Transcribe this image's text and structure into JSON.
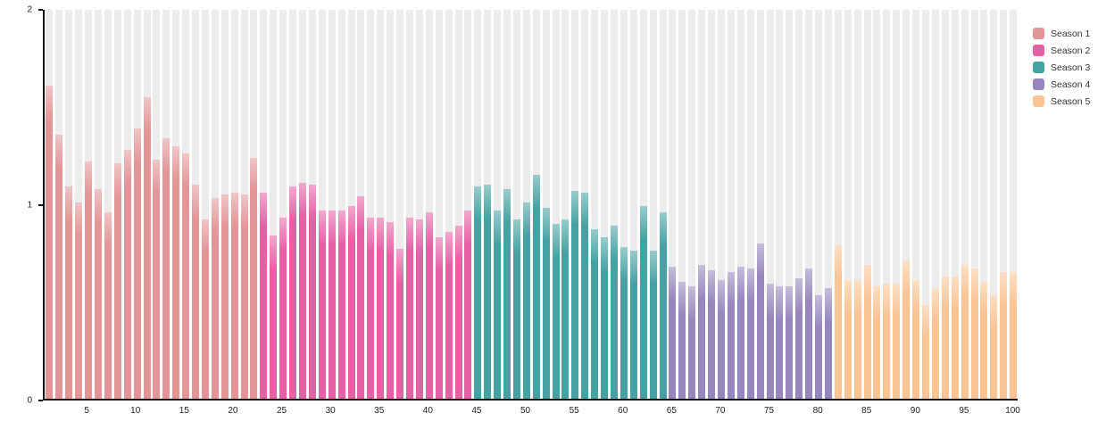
{
  "page": {
    "background": "#ffffff"
  },
  "chart_data": {
    "type": "bar",
    "title": "",
    "x_range": [
      1,
      100
    ],
    "ylim": [
      0,
      2
    ],
    "yticks": [
      "0",
      "1",
      "2"
    ],
    "xticks": [
      "5",
      "10",
      "15",
      "20",
      "25",
      "30",
      "35",
      "40",
      "45",
      "50",
      "55",
      "60",
      "65",
      "70",
      "75",
      "80",
      "85",
      "90",
      "95",
      "100"
    ],
    "grid": false,
    "background_stripes": true,
    "stripe_color": "#ececec",
    "legend_position": "top-right",
    "series": [
      {
        "name": "Season 1",
        "color": "#E39597",
        "x_start": 1,
        "values": [
          1.61,
          1.36,
          1.09,
          1.01,
          1.22,
          1.08,
          0.96,
          1.21,
          1.28,
          1.39,
          1.55,
          1.23,
          1.34,
          1.3,
          1.26,
          1.1,
          0.92,
          1.03,
          1.05,
          1.06,
          1.05,
          1.24
        ]
      },
      {
        "name": "Season 2",
        "color": "#E660A6",
        "x_start": 23,
        "values": [
          1.06,
          0.84,
          0.93,
          1.09,
          1.11,
          1.1,
          0.97,
          0.97,
          0.97,
          0.99,
          1.04,
          0.93,
          0.93,
          0.91,
          0.77,
          0.93,
          0.92,
          0.96,
          0.83,
          0.86,
          0.89,
          0.97
        ]
      },
      {
        "name": "Season 3",
        "color": "#45A2A2",
        "x_start": 45,
        "values": [
          1.09,
          1.1,
          0.97,
          1.08,
          0.92,
          1.01,
          1.15,
          0.98,
          0.9,
          0.92,
          1.07,
          1.06,
          0.87,
          0.83,
          0.89,
          0.78,
          0.76,
          0.99,
          0.76,
          0.96
        ]
      },
      {
        "name": "Season 4",
        "color": "#9786BD",
        "x_start": 65,
        "values": [
          0.68,
          0.6,
          0.58,
          0.69,
          0.66,
          0.61,
          0.65,
          0.68,
          0.67,
          0.8,
          0.59,
          0.58,
          0.58,
          0.62,
          0.67,
          0.53,
          0.57
        ]
      },
      {
        "name": "Season 5",
        "color": "#FAC494",
        "x_start": 82,
        "values": [
          0.79,
          0.61,
          0.61,
          0.69,
          0.58,
          0.59,
          0.59,
          0.71,
          0.61,
          0.48,
          0.57,
          0.63,
          0.63,
          0.69,
          0.67,
          0.6,
          0.53,
          0.65,
          0.65
        ]
      }
    ]
  }
}
